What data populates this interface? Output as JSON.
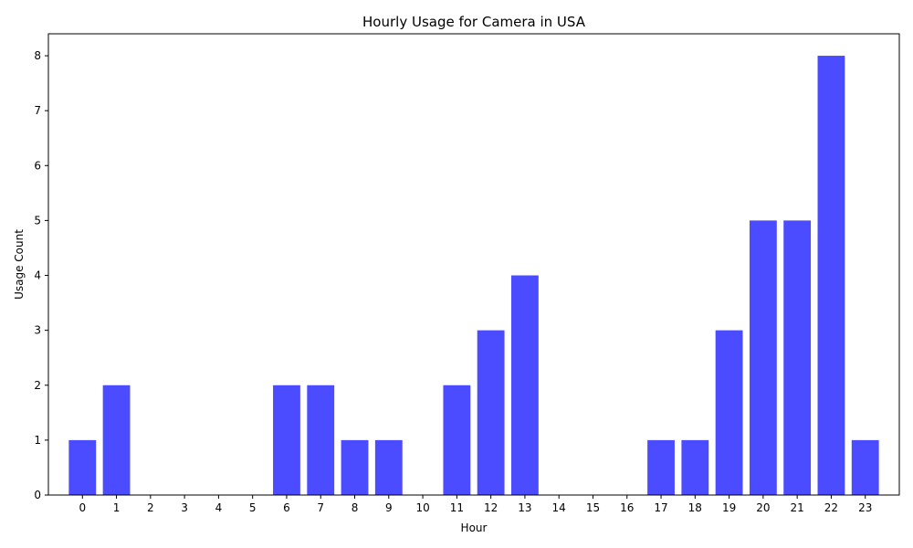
{
  "chart_data": {
    "type": "bar",
    "title": "Hourly Usage for Camera in USA",
    "xlabel": "Hour",
    "ylabel": "Usage Count",
    "categories": [
      "0",
      "1",
      "2",
      "3",
      "4",
      "5",
      "6",
      "7",
      "8",
      "9",
      "10",
      "11",
      "12",
      "13",
      "14",
      "15",
      "16",
      "17",
      "18",
      "19",
      "20",
      "21",
      "22",
      "23"
    ],
    "values": [
      1,
      2,
      0,
      0,
      0,
      0,
      2,
      2,
      1,
      1,
      0,
      2,
      3,
      4,
      0,
      0,
      0,
      1,
      1,
      3,
      5,
      5,
      8,
      1
    ],
    "ylim": [
      0,
      8.4
    ],
    "yticks": [
      0,
      1,
      2,
      3,
      4,
      5,
      6,
      7,
      8
    ],
    "grid": false,
    "bar_color": "#4b4bff"
  }
}
